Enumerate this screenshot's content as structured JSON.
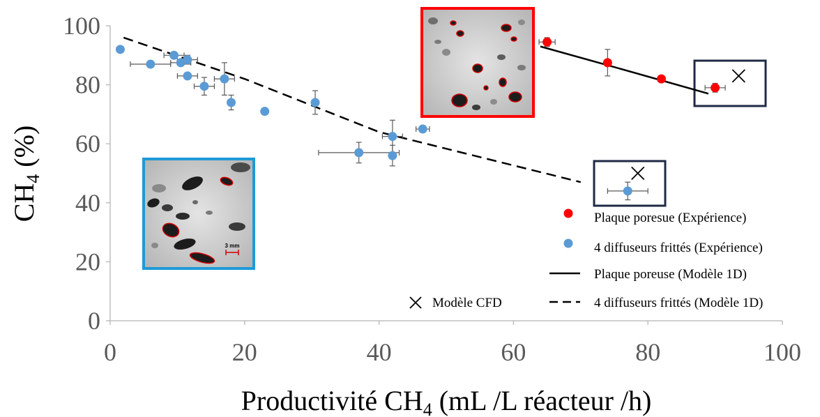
{
  "chart_data": {
    "type": "scatter",
    "title": "",
    "xlabel": "Productivité CH",
    "xlabel_sub": "4",
    "xlabel_suffix": " (mL /L réacteur /h)",
    "ylabel": "CH",
    "ylabel_sub": "4",
    "ylabel_suffix": " (%)",
    "xlim": [
      0,
      100
    ],
    "ylim": [
      0,
      100
    ],
    "xticks": [
      "0",
      "20",
      "40",
      "60",
      "80",
      "100"
    ],
    "yticks": [
      "0",
      "20",
      "40",
      "60",
      "80",
      "100"
    ],
    "grid": false,
    "legend_position": "bottom-right",
    "series": [
      {
        "name": "Plaque poresue (Expérience)",
        "kind": "points",
        "color": "#ff0000",
        "points": [
          {
            "x": 65,
            "y": 94.5,
            "xerr": 1.2,
            "yerr": 1.5
          },
          {
            "x": 74,
            "y": 87.5,
            "xerr": 0,
            "yerr": 4.5
          },
          {
            "x": 82,
            "y": 82,
            "xerr": 0,
            "yerr": 0
          },
          {
            "x": 90,
            "y": 79,
            "xerr": 1.5,
            "yerr": 1.5
          }
        ]
      },
      {
        "name": "4 diffuseurs frittés (Expérience)",
        "kind": "points",
        "color": "#5b9bd5",
        "points": [
          {
            "x": 1.5,
            "y": 92,
            "xerr": 0,
            "yerr": 0
          },
          {
            "x": 6,
            "y": 87,
            "xerr": 3,
            "yerr": 0
          },
          {
            "x": 9.5,
            "y": 90,
            "xerr": 1.5,
            "yerr": 0
          },
          {
            "x": 10.5,
            "y": 87.5,
            "xerr": 1.5,
            "yerr": 0
          },
          {
            "x": 11.5,
            "y": 88.5,
            "xerr": 1.5,
            "yerr": 1.5
          },
          {
            "x": 11.5,
            "y": 83,
            "xerr": 1.5,
            "yerr": 0
          },
          {
            "x": 14,
            "y": 79.5,
            "xerr": 1.5,
            "yerr": 3
          },
          {
            "x": 17,
            "y": 82,
            "xerr": 1.5,
            "yerr": 5.5
          },
          {
            "x": 18,
            "y": 74,
            "xerr": 0,
            "yerr": 2.5
          },
          {
            "x": 23,
            "y": 71,
            "xerr": 0,
            "yerr": 0
          },
          {
            "x": 30.5,
            "y": 74,
            "xerr": 0,
            "yerr": 4
          },
          {
            "x": 37,
            "y": 57,
            "xerr": 6,
            "yerr": 3.5
          },
          {
            "x": 42,
            "y": 62.5,
            "xerr": 1.5,
            "yerr": 5.5
          },
          {
            "x": 42,
            "y": 56,
            "xerr": 0,
            "yerr": 3.5
          },
          {
            "x": 46.5,
            "y": 65,
            "xerr": 1,
            "yerr": 0
          },
          {
            "x": 77,
            "y": 44,
            "xerr": 3,
            "yerr": 3
          }
        ]
      },
      {
        "name": "Plaque poreuse (Modèle 1D)",
        "kind": "line",
        "style": "solid",
        "color": "#000000",
        "points": [
          {
            "x": 64,
            "y": 93
          },
          {
            "x": 75,
            "y": 86
          },
          {
            "x": 89,
            "y": 77
          }
        ]
      },
      {
        "name": "4 diffuseurs frittés (Modèle 1D)",
        "kind": "line",
        "style": "dashed",
        "color": "#000000",
        "points": [
          {
            "x": 2,
            "y": 96
          },
          {
            "x": 20,
            "y": 82
          },
          {
            "x": 40,
            "y": 64
          },
          {
            "x": 70,
            "y": 47
          }
        ]
      },
      {
        "name": "Modèle CFD",
        "kind": "marker",
        "marker": "x",
        "color": "#000000",
        "points": [
          {
            "x": 93.5,
            "y": 83
          },
          {
            "x": 78.5,
            "y": 50
          }
        ]
      }
    ],
    "legend": [
      {
        "label": "Plaque poresue (Expérience)",
        "symbol": "dot",
        "color": "#ff0000"
      },
      {
        "label": "4 diffuseurs frittés (Expérience)",
        "symbol": "dot",
        "color": "#5b9bd5"
      },
      {
        "label": "Plaque poreuse (Modèle 1D)",
        "symbol": "solid-line",
        "color": "#000000"
      },
      {
        "label": "4 diffuseurs frittés (Modèle 1D)",
        "symbol": "dashed-line",
        "color": "#000000"
      },
      {
        "label": "Modèle CFD",
        "symbol": "x",
        "color": "#000000"
      }
    ],
    "annotations": {
      "highlight_boxes_color": "#1f2a44",
      "inset_red_color": "#ff0000",
      "inset_blue_color": "#1e9ad6",
      "scale_bar_label": "3 mm"
    }
  }
}
